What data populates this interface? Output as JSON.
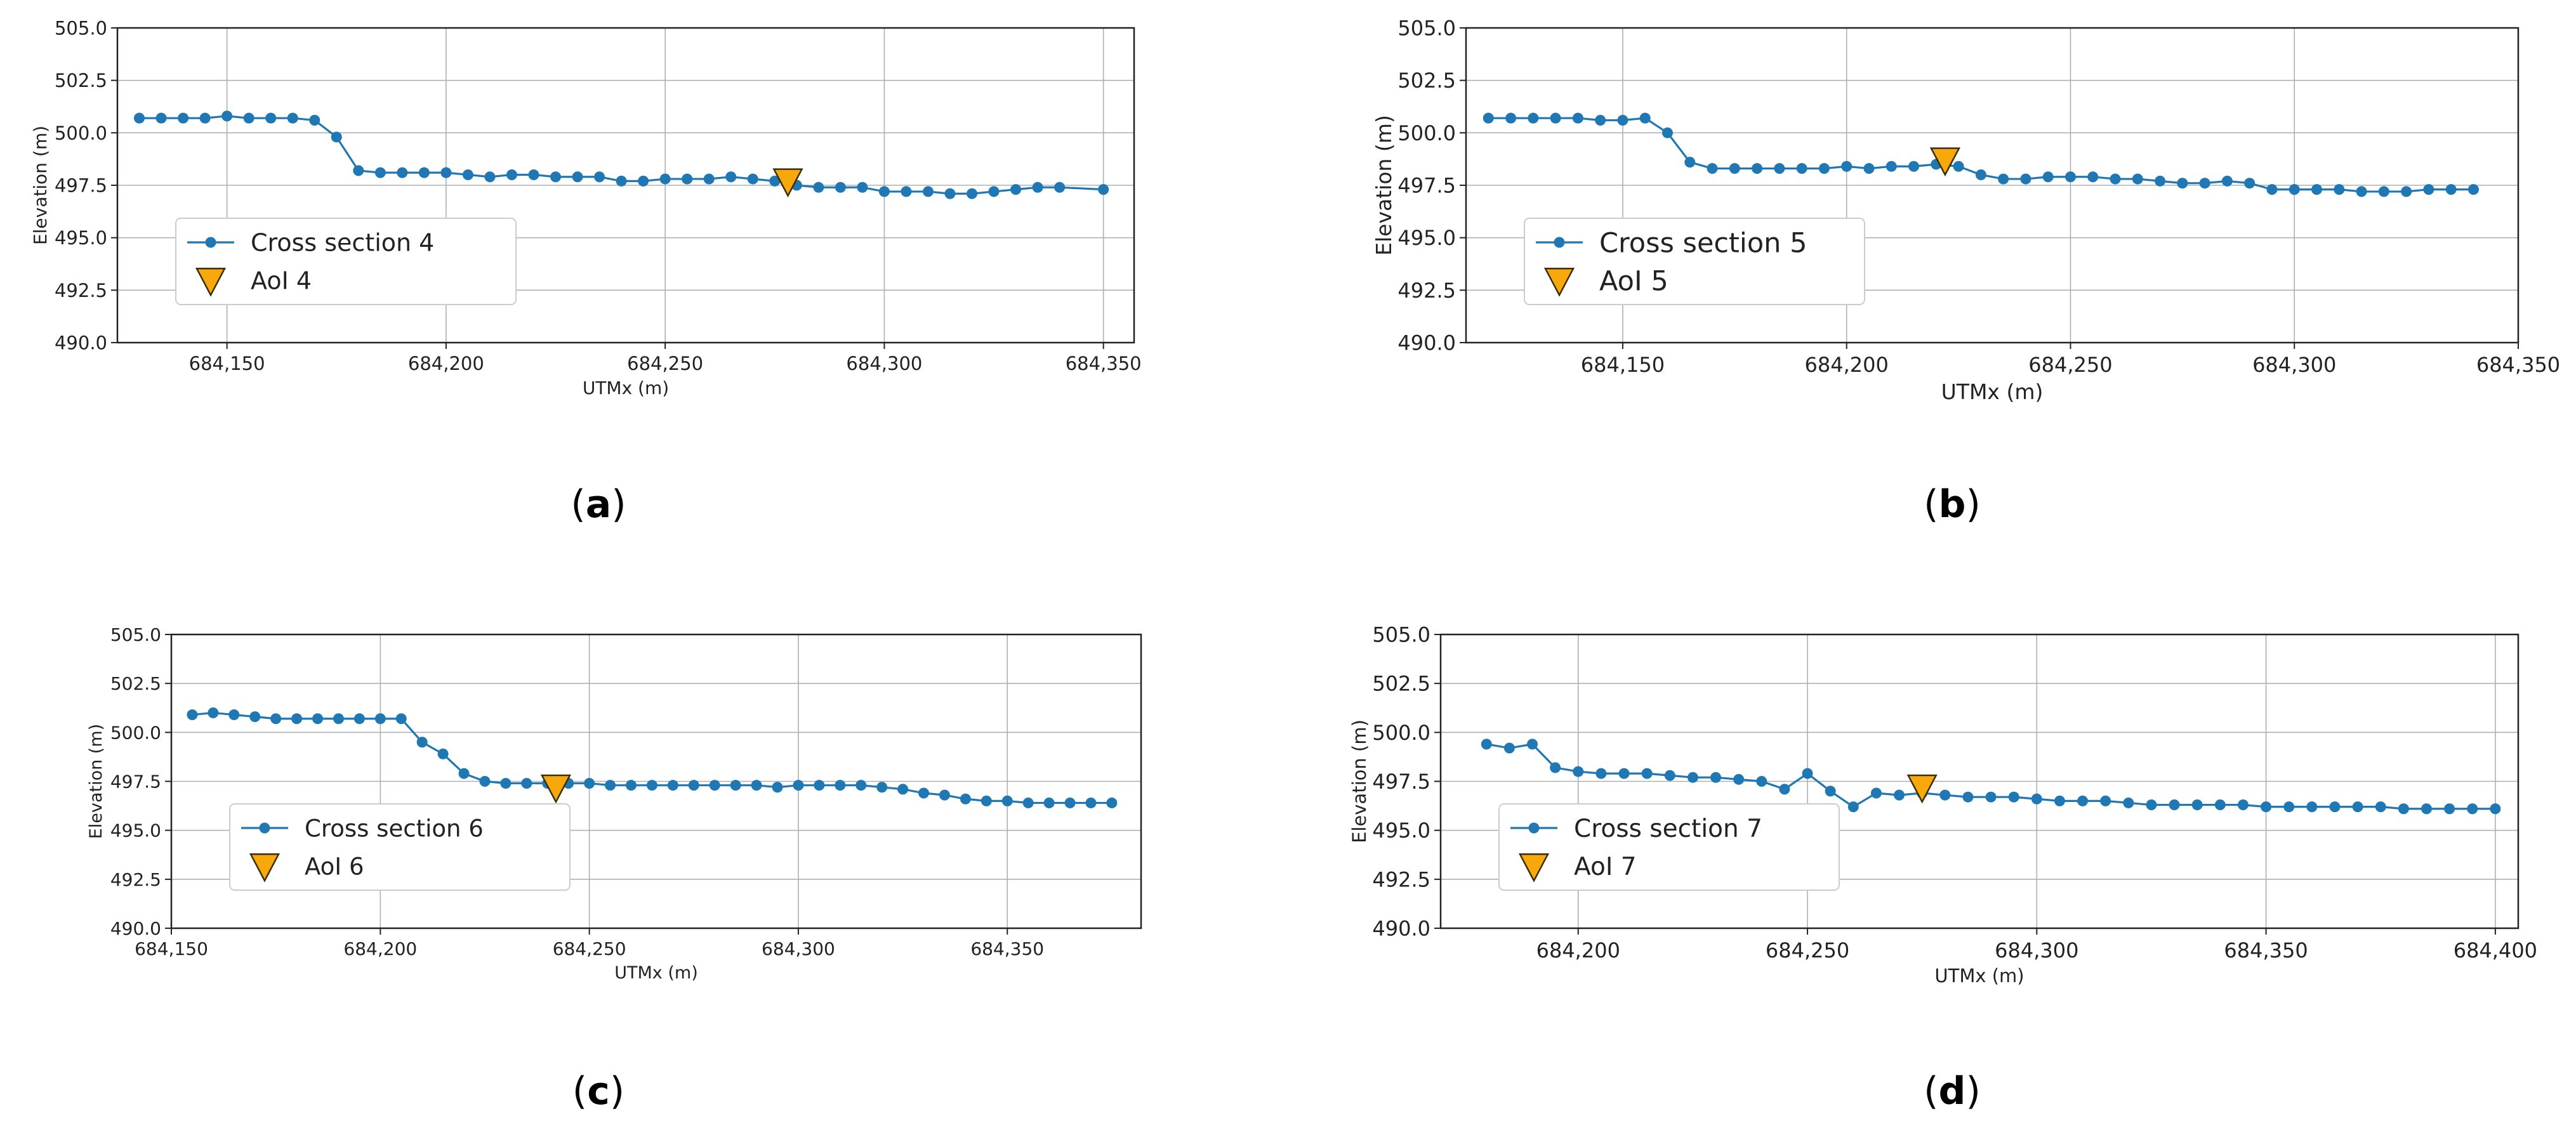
{
  "figure": {
    "colors": {
      "series": "#1f77b4",
      "marker": "#f7a90c",
      "marker_edge": "#3a2d00",
      "grid": "#b0b0b0",
      "text": "#222222"
    }
  },
  "chart_data": [
    {
      "type": "line",
      "panel_label": "(a)",
      "caption_letter": "a",
      "xlabel": "UTMx (m)",
      "ylabel": "Elevation (m)",
      "xlim": [
        684125,
        684357
      ],
      "ylim": [
        490.0,
        505.0
      ],
      "xticks": [
        684150,
        684200,
        684250,
        684300,
        684350
      ],
      "xtick_labels": [
        "684,150",
        "684,200",
        "684,250",
        "684,300",
        "684,350"
      ],
      "yticks": [
        490.0,
        492.5,
        495.0,
        497.5,
        500.0,
        502.5,
        505.0
      ],
      "ytick_labels": [
        "490.0",
        "492.5",
        "495.0",
        "497.5",
        "500.0",
        "502.5",
        "505.0"
      ],
      "legend_position": "lower-left",
      "series": [
        {
          "name": "Cross section 4",
          "x": [
            684130,
            684135,
            684140,
            684145,
            684150,
            684155,
            684160,
            684165,
            684170,
            684175,
            684180,
            684185,
            684190,
            684195,
            684200,
            684205,
            684210,
            684215,
            684220,
            684225,
            684230,
            684235,
            684240,
            684245,
            684250,
            684255,
            684260,
            684265,
            684270,
            684275,
            684280,
            684285,
            684290,
            684295,
            684300,
            684305,
            684310,
            684315,
            684320,
            684325,
            684330,
            684335,
            684340,
            684350
          ],
          "y": [
            500.7,
            500.7,
            500.7,
            500.7,
            500.8,
            500.7,
            500.7,
            500.7,
            500.6,
            499.8,
            498.2,
            498.1,
            498.1,
            498.1,
            498.1,
            498.0,
            497.9,
            498.0,
            498.0,
            497.9,
            497.9,
            497.9,
            497.7,
            497.7,
            497.8,
            497.8,
            497.8,
            497.9,
            497.8,
            497.7,
            497.5,
            497.4,
            497.4,
            497.4,
            497.2,
            497.2,
            497.2,
            497.1,
            497.1,
            497.2,
            497.3,
            497.4,
            497.4,
            497.3
          ]
        }
      ],
      "points": [
        {
          "name": "AoI 4",
          "x": 684278,
          "y": 497.7
        }
      ]
    },
    {
      "type": "line",
      "panel_label": "(b)",
      "caption_letter": "b",
      "xlabel": "UTMx (m)",
      "ylabel": "Elevation (m)",
      "xlim": [
        684115,
        684350
      ],
      "ylim": [
        490.0,
        505.0
      ],
      "xticks": [
        684150,
        684200,
        684250,
        684300,
        684350
      ],
      "xtick_labels": [
        "684,150",
        "684,200",
        "684,250",
        "684,300",
        "684,350"
      ],
      "yticks": [
        490.0,
        492.5,
        495.0,
        497.5,
        500.0,
        502.5,
        505.0
      ],
      "ytick_labels": [
        "490.0",
        "492.5",
        "495.0",
        "497.5",
        "500.0",
        "502.5",
        "505.0"
      ],
      "legend_position": "lower-left",
      "series": [
        {
          "name": "Cross section 5",
          "x": [
            684120,
            684125,
            684130,
            684135,
            684140,
            684145,
            684150,
            684155,
            684160,
            684165,
            684170,
            684175,
            684180,
            684185,
            684190,
            684195,
            684200,
            684205,
            684210,
            684215,
            684220,
            684225,
            684230,
            684235,
            684240,
            684245,
            684250,
            684255,
            684260,
            684265,
            684270,
            684275,
            684280,
            684285,
            684290,
            684295,
            684300,
            684305,
            684310,
            684315,
            684320,
            684325,
            684330,
            684335,
            684340
          ],
          "y": [
            500.7,
            500.7,
            500.7,
            500.7,
            500.7,
            500.6,
            500.6,
            500.7,
            500.0,
            498.6,
            498.3,
            498.3,
            498.3,
            498.3,
            498.3,
            498.3,
            498.4,
            498.3,
            498.4,
            498.4,
            498.5,
            498.4,
            498.0,
            497.8,
            497.8,
            497.9,
            497.9,
            497.9,
            497.8,
            497.8,
            497.7,
            497.6,
            497.6,
            497.7,
            497.6,
            497.3,
            497.3,
            497.3,
            497.3,
            497.2,
            497.2,
            497.2,
            497.3,
            497.3,
            497.3
          ]
        }
      ],
      "points": [
        {
          "name": "AoI 5",
          "x": 684222,
          "y": 498.7
        }
      ]
    },
    {
      "type": "line",
      "panel_label": "(c)",
      "caption_letter": "c",
      "xlabel": "UTMx (m)",
      "ylabel": "Elevation (m)",
      "xlim": [
        684150,
        684382
      ],
      "ylim": [
        490.0,
        505.0
      ],
      "xticks": [
        684150,
        684200,
        684250,
        684300,
        684350
      ],
      "xtick_labels": [
        "684,150",
        "684,200",
        "684,250",
        "684,300",
        "684,350"
      ],
      "yticks": [
        490.0,
        492.5,
        495.0,
        497.5,
        500.0,
        502.5,
        505.0
      ],
      "ytick_labels": [
        "490.0",
        "492.5",
        "495.0",
        "497.5",
        "500.0",
        "502.5",
        "505.0"
      ],
      "legend_position": "lower-left",
      "series": [
        {
          "name": "Cross section 6",
          "x": [
            684155,
            684160,
            684165,
            684170,
            684175,
            684180,
            684185,
            684190,
            684195,
            684200,
            684205,
            684210,
            684215,
            684220,
            684225,
            684230,
            684235,
            684240,
            684245,
            684250,
            684255,
            684260,
            684265,
            684270,
            684275,
            684280,
            684285,
            684290,
            684295,
            684300,
            684305,
            684310,
            684315,
            684320,
            684325,
            684330,
            684335,
            684340,
            684345,
            684350,
            684355,
            684360,
            684365,
            684370,
            684375
          ],
          "y": [
            500.9,
            501.0,
            500.9,
            500.8,
            500.7,
            500.7,
            500.7,
            500.7,
            500.7,
            500.7,
            500.7,
            499.5,
            498.9,
            497.9,
            497.5,
            497.4,
            497.4,
            497.4,
            497.4,
            497.4,
            497.3,
            497.3,
            497.3,
            497.3,
            497.3,
            497.3,
            497.3,
            497.3,
            497.2,
            497.3,
            497.3,
            497.3,
            497.3,
            497.2,
            497.1,
            496.9,
            496.8,
            496.6,
            496.5,
            496.5,
            496.4,
            496.4,
            496.4,
            496.4,
            496.4
          ]
        }
      ],
      "points": [
        {
          "name": "AoI 6",
          "x": 684242,
          "y": 497.2
        }
      ]
    },
    {
      "type": "line",
      "panel_label": "(d)",
      "caption_letter": "d",
      "xlabel": "UTMx (m)",
      "ylabel": "Elevation (m)",
      "xlim": [
        684170,
        684405
      ],
      "ylim": [
        490.0,
        505.0
      ],
      "xticks": [
        684200,
        684250,
        684300,
        684350,
        684400
      ],
      "xtick_labels": [
        "684,200",
        "684,250",
        "684,300",
        "684,350",
        "684,400"
      ],
      "yticks": [
        490.0,
        492.5,
        495.0,
        497.5,
        500.0,
        502.5,
        505.0
      ],
      "ytick_labels": [
        "490.0",
        "492.5",
        "495.0",
        "497.5",
        "500.0",
        "502.5",
        "505.0"
      ],
      "legend_position": "lower-left",
      "series": [
        {
          "name": "Cross section 7",
          "x": [
            684180,
            684185,
            684190,
            684195,
            684200,
            684205,
            684210,
            684215,
            684220,
            684225,
            684230,
            684235,
            684240,
            684245,
            684250,
            684255,
            684260,
            684265,
            684270,
            684275,
            684280,
            684285,
            684290,
            684295,
            684300,
            684305,
            684310,
            684315,
            684320,
            684325,
            684330,
            684335,
            684340,
            684345,
            684350,
            684355,
            684360,
            684365,
            684370,
            684375,
            684380,
            684385,
            684390,
            684395,
            684400
          ],
          "y": [
            499.4,
            499.2,
            499.4,
            498.2,
            498.0,
            497.9,
            497.9,
            497.9,
            497.8,
            497.7,
            497.7,
            497.6,
            497.5,
            497.1,
            497.9,
            497.0,
            496.2,
            496.9,
            496.8,
            496.9,
            496.8,
            496.7,
            496.7,
            496.7,
            496.6,
            496.5,
            496.5,
            496.5,
            496.4,
            496.3,
            496.3,
            496.3,
            496.3,
            496.3,
            496.2,
            496.2,
            496.2,
            496.2,
            496.2,
            496.2,
            496.1,
            496.1,
            496.1,
            496.1,
            496.1
          ]
        }
      ],
      "points": [
        {
          "name": "AoI 7",
          "x": 684275,
          "y": 497.2
        }
      ]
    }
  ]
}
